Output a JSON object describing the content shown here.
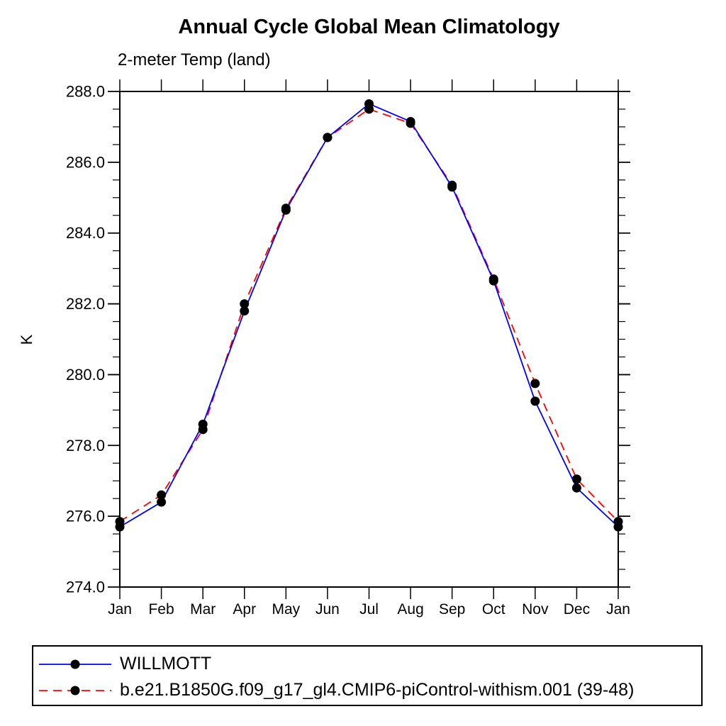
{
  "page": {
    "title": "Annual Cycle Global Mean Climatology",
    "subtitle": "2-meter Temp (land)",
    "ylabel": "K"
  },
  "chart_data": {
    "type": "line",
    "title": "Annual Cycle Global Mean Climatology",
    "subtitle": "2-meter Temp (land)",
    "xlabel": "",
    "ylabel": "K",
    "categories": [
      "Jan",
      "Feb",
      "Mar",
      "Apr",
      "May",
      "Jun",
      "Jul",
      "Aug",
      "Sep",
      "Oct",
      "Nov",
      "Dec",
      "Jan"
    ],
    "series": [
      {
        "name": "WILLMOTT",
        "color": "#0000ff",
        "line_style": "solid",
        "marker": "filled-circle",
        "values": [
          275.7,
          276.4,
          278.6,
          281.8,
          284.65,
          286.7,
          287.65,
          287.15,
          285.3,
          282.65,
          279.25,
          276.8,
          275.7
        ]
      },
      {
        "name": "b.e21.B1850G.f09_g17_gl4.CMIP6-piControl-withism.001 (39-48)",
        "color": "#ff0000",
        "line_style": "dashed",
        "marker": "filled-circle",
        "values": [
          275.85,
          276.6,
          278.45,
          282.0,
          284.7,
          286.7,
          287.5,
          287.1,
          285.35,
          282.7,
          279.75,
          277.05,
          275.85
        ]
      }
    ],
    "ylim": [
      274.0,
      288.0
    ],
    "ytick_labels": [
      "274.0",
      "276.0",
      "278.0",
      "280.0",
      "282.0",
      "284.0",
      "286.0",
      "288.0"
    ],
    "ytick_step": 2.0,
    "ytick_minor_step": 0.5,
    "grid": false,
    "legend_position": "bottom",
    "marker_color": "#000000",
    "axis_color": "#000000"
  },
  "legend": {
    "items": [
      {
        "label": "WILLMOTT",
        "color": "#0000ff",
        "line_style": "solid"
      },
      {
        "label": "b.e21.B1850G.f09_g17_gl4.CMIP6-piControl-withism.001 (39-48)",
        "color": "#ff0000",
        "line_style": "dashed"
      }
    ]
  }
}
